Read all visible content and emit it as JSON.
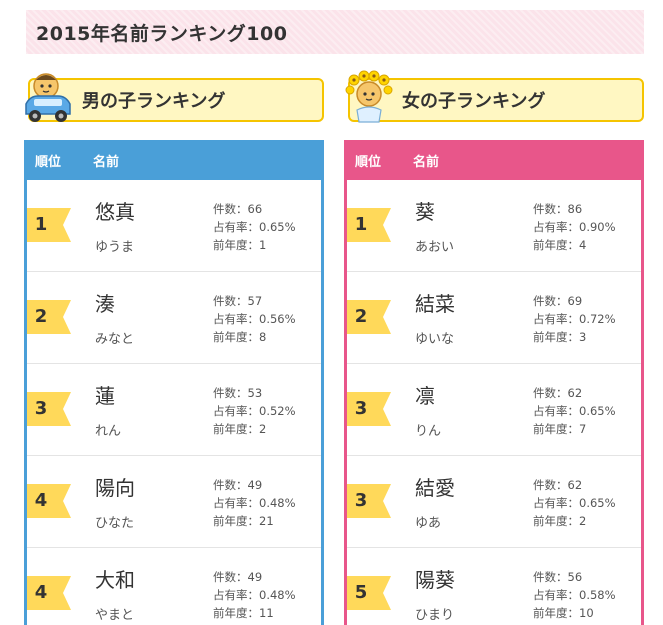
{
  "page": {
    "title": "2015年名前ランキング100"
  },
  "labels": {
    "count": "件数：",
    "share": "占有率：",
    "prev": "前年度："
  },
  "colors": {
    "boys": "#4a9fd8",
    "girls": "#e8568a",
    "badge": "#ffd95a",
    "header_bg": "#fff7c2"
  },
  "boys": {
    "heading": "男の子ランキング",
    "icon": "boy-in-car-icon",
    "col_rank": "順位",
    "col_name": "名前",
    "rows": [
      {
        "rank": "1",
        "name": "悠真",
        "reading": "ゆうま",
        "count": "66",
        "share": "0.65%",
        "prev": "1"
      },
      {
        "rank": "2",
        "name": "湊",
        "reading": "みなと",
        "count": "57",
        "share": "0.56%",
        "prev": "8"
      },
      {
        "rank": "3",
        "name": "蓮",
        "reading": "れん",
        "count": "53",
        "share": "0.52%",
        "prev": "2"
      },
      {
        "rank": "4",
        "name": "陽向",
        "reading": "ひなた",
        "count": "49",
        "share": "0.48%",
        "prev": "21"
      },
      {
        "rank": "4",
        "name": "大和",
        "reading": "やまと",
        "count": "49",
        "share": "0.48%",
        "prev": "11"
      }
    ]
  },
  "girls": {
    "heading": "女の子ランキング",
    "icon": "girl-with-flowers-icon",
    "col_rank": "順位",
    "col_name": "名前",
    "rows": [
      {
        "rank": "1",
        "name": "葵",
        "reading": "あおい",
        "count": "86",
        "share": "0.90%",
        "prev": "4"
      },
      {
        "rank": "2",
        "name": "結菜",
        "reading": "ゆいな",
        "count": "69",
        "share": "0.72%",
        "prev": "3"
      },
      {
        "rank": "3",
        "name": "凛",
        "reading": "りん",
        "count": "62",
        "share": "0.65%",
        "prev": "7"
      },
      {
        "rank": "3",
        "name": "結愛",
        "reading": "ゆあ",
        "count": "62",
        "share": "0.65%",
        "prev": "2"
      },
      {
        "rank": "5",
        "name": "陽葵",
        "reading": "ひまり",
        "count": "56",
        "share": "0.58%",
        "prev": "10"
      }
    ]
  }
}
